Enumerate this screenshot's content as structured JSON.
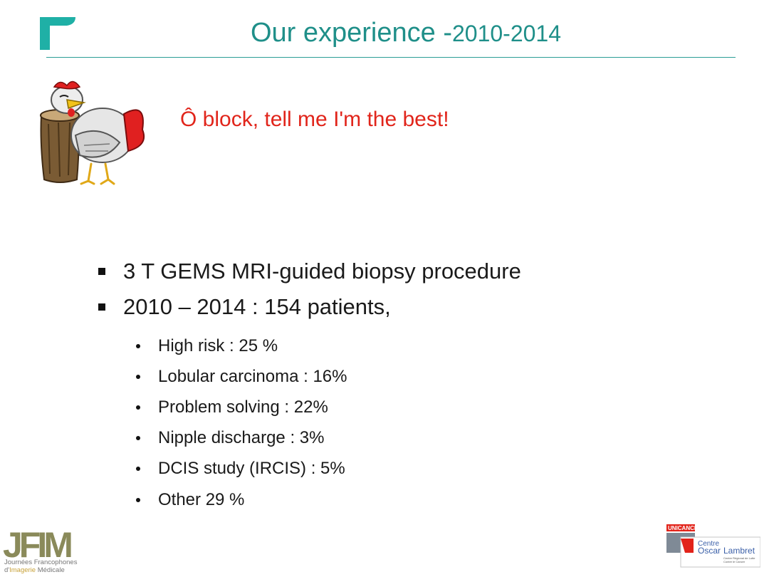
{
  "header": {
    "title": "Our experience -",
    "title_years": "2010-2014"
  },
  "quote": "Ô block, tell me I'm the best!",
  "bullets": [
    {
      "label": "3 T GEMS MRI-guided biopsy procedure"
    },
    {
      "label": "2010 – 2014 : 154 patients,"
    }
  ],
  "sub_bullets": [
    {
      "label": "High risk : 25 %"
    },
    {
      "label": "Lobular carcinoma : 16%"
    },
    {
      "label": "Problem solving : 22%"
    },
    {
      "label": "Nipple discharge : 3%"
    },
    {
      "label": "DCIS study (IRCIS) : 5%"
    },
    {
      "label": "Other 29 %"
    }
  ],
  "footer": {
    "jfim_logo_text": "JFIM",
    "jfim_line1": "Journées Francophones",
    "jfim_line2_prefix": "d'",
    "jfim_line2_highlight": "Imagerie",
    "jfim_line2_suffix": " Médicale",
    "unicancer_text": "UNICANCER",
    "centre_line1": "Centre",
    "centre_line2_a": "Oscar",
    "centre_line2_b": "Lambret",
    "centre_line3": "Centre Régional de Lutte",
    "centre_line4": "Contre le Cancer"
  },
  "colors": {
    "title": "#1f8f89",
    "quote": "#e1251b",
    "rule": "#2a9d95",
    "jfim_olive": "#8a8a5a",
    "unicancer_red": "#e2231a",
    "lambret_blue": "#3a5fa8"
  }
}
